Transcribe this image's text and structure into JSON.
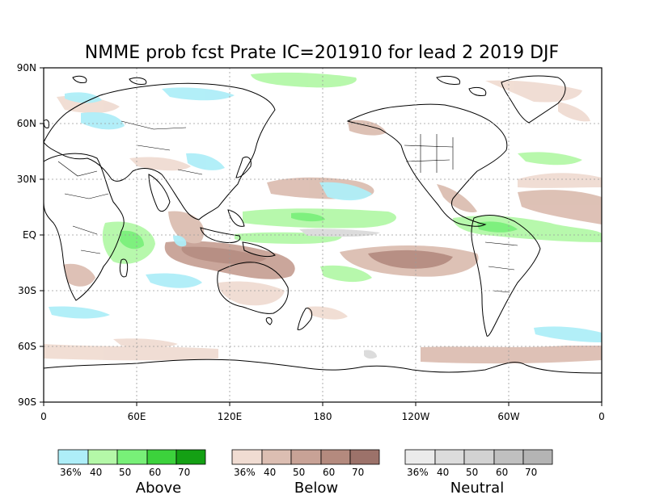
{
  "title": "NMME prob fcst Prate IC=201910 for lead 2 2019 DJF",
  "lat_labels": [
    "90N",
    "60N",
    "30N",
    "EQ",
    "30S",
    "60S",
    "90S"
  ],
  "lon_labels": [
    "0",
    "60E",
    "120E",
    "180",
    "120W",
    "60W",
    "0"
  ],
  "legends": [
    {
      "title": "Above",
      "colors": [
        "#aeeef8",
        "#b4f8a8",
        "#78f078",
        "#3cd23c",
        "#14a014"
      ],
      "labels": [
        "36%",
        "40",
        "50",
        "60",
        "70"
      ]
    },
    {
      "title": "Below",
      "colors": [
        "#f0dcd2",
        "#dcbeb2",
        "#c8a296",
        "#b48a7e",
        "#9c726a"
      ],
      "labels": [
        "36%",
        "40",
        "50",
        "60",
        "70"
      ]
    },
    {
      "title": "Neutral",
      "colors": [
        "#ebebeb",
        "#dcdcdc",
        "#d2d2d2",
        "#c0c0c0",
        "#b4b4b4"
      ],
      "labels": [
        "36%",
        "40",
        "50",
        "60",
        "70"
      ]
    }
  ]
}
